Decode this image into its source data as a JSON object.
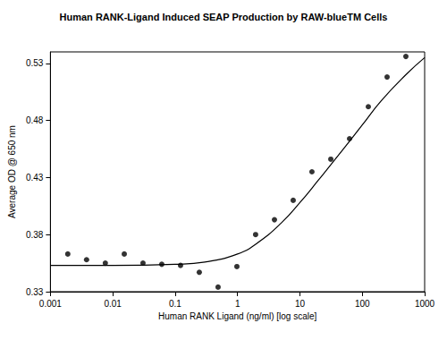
{
  "chart_data": {
    "type": "scatter",
    "title": "Human RANK-Ligand Induced SEAP Production by RAW-blueTM Cells",
    "x_label": "Human RANK Ligand (ng/ml) [log scale]",
    "y_label": "Average OD @ 650 nm",
    "log": "x",
    "grid": false,
    "xlim": [
      0.001,
      1000
    ],
    "xticks": [
      0.001,
      0.01,
      0.1,
      1,
      10,
      100,
      1000
    ],
    "ylim": [
      0.33,
      0.54
    ],
    "yticks": [
      0.33,
      0.38,
      0.43,
      0.48,
      0.53
    ],
    "series": [
      {
        "type": "scatter",
        "color": "#000000",
        "marker": "circle",
        "x": [
          0.0019,
          0.0038,
          0.0076,
          0.0153,
          0.0305,
          0.061,
          0.122,
          0.244,
          0.488,
          0.977,
          1.95,
          3.91,
          7.81,
          15.6,
          31.3,
          62.5,
          125,
          250,
          500
        ],
        "values": [
          0.363,
          0.358,
          0.355,
          0.363,
          0.355,
          0.354,
          0.353,
          0.347,
          0.334,
          0.352,
          0.38,
          0.393,
          0.41,
          0.435,
          0.446,
          0.464,
          0.492,
          0.518,
          0.536
        ]
      },
      {
        "type": "line",
        "color": "#000000",
        "line_style": "solid",
        "x": [
          0.001,
          0.01,
          0.1,
          0.3,
          1,
          2,
          5,
          10,
          20,
          50,
          100,
          200,
          500,
          1000
        ],
        "values": [
          0.353,
          0.353,
          0.354,
          0.356,
          0.363,
          0.372,
          0.39,
          0.408,
          0.428,
          0.455,
          0.476,
          0.497,
          0.52,
          0.535
        ]
      }
    ]
  }
}
